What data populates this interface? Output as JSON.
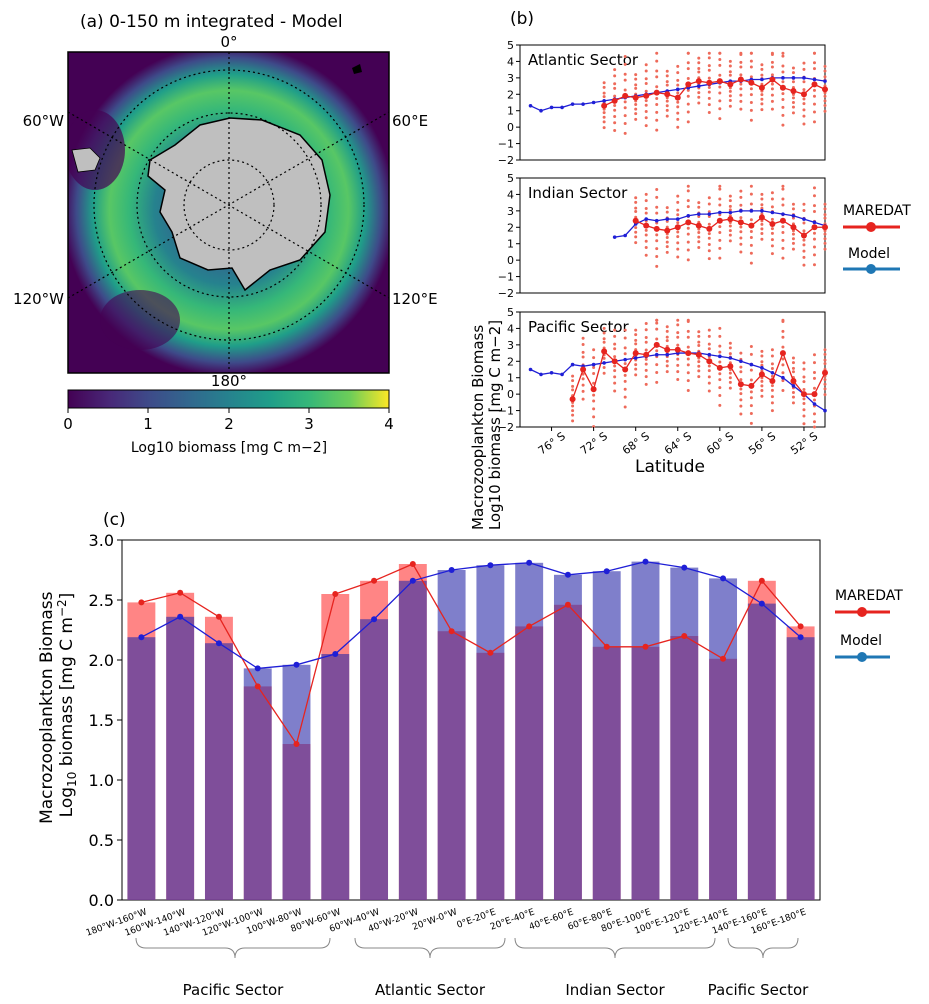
{
  "panel_a": {
    "label": "(a)",
    "title": "0-150 m integrated - Model",
    "lon_labels": {
      "top": "0°",
      "left_upper": "60°W",
      "right_upper": "60°E",
      "left_lower": "120°W",
      "right_lower": "120°E",
      "bottom": "180°"
    },
    "colorbar": {
      "label": "Log10 biomass [mg C m−2]",
      "ticks": [
        "0",
        "1",
        "2",
        "3",
        "4"
      ],
      "range": [
        0,
        4
      ],
      "colormap": "viridis"
    },
    "colors": {
      "ocean_low": "#440154",
      "land": "#bfbfbf"
    }
  },
  "panel_b": {
    "label": "(b)",
    "ylabel_line1": "Macrozooplankton Biomass",
    "ylabel_line2": "Log10 biomass [mg C m−2]",
    "xlabel": "Latitude",
    "x_ticks": [
      "76° S",
      "72° S",
      "68° S",
      "64° S",
      "60° S",
      "56° S",
      "52° S"
    ],
    "y_ticks": [
      "−2",
      "−1",
      "0",
      "1",
      "2",
      "3",
      "4",
      "5"
    ],
    "legend": {
      "maredat": "MAREDAT",
      "model": "Model"
    }
  },
  "panel_c": {
    "label": "(c)",
    "legend": {
      "maredat": "MAREDAT",
      "model": "Model"
    },
    "brace_groups": [
      "Pacific Sector",
      "Atlantic Sector",
      "Indian Sector",
      "Pacific Sector"
    ]
  },
  "chart_data": [
    {
      "type": "line",
      "title": "Atlantic Sector",
      "xlabel": "Latitude",
      "ylabel": "Log10 biomass [mg C m−2]",
      "xlim": [
        -79,
        -50
      ],
      "ylim": [
        -2,
        5
      ],
      "series": [
        {
          "name": "MAREDAT",
          "color": "#e6241f",
          "x": [
            -71,
            -70,
            -69,
            -68,
            -67,
            -66,
            -65,
            -64,
            -63,
            -62,
            -61,
            -60,
            -59,
            -58,
            -57,
            -56,
            -55,
            -54,
            -53,
            -52,
            -51,
            -50
          ],
          "y": [
            1.3,
            1.6,
            1.9,
            1.8,
            1.9,
            2.1,
            2.0,
            1.8,
            2.6,
            2.8,
            2.7,
            2.8,
            2.6,
            2.9,
            2.7,
            2.4,
            2.9,
            2.4,
            2.2,
            2.0,
            2.6,
            2.3
          ]
        },
        {
          "name": "Model",
          "color": "#1f1fd6",
          "x": [
            -78,
            -77,
            -76,
            -75,
            -74,
            -73,
            -72,
            -71,
            -70,
            -69,
            -68,
            -67,
            -66,
            -65,
            -64,
            -63,
            -62,
            -61,
            -60,
            -59,
            -58,
            -57,
            -56,
            -55,
            -54,
            -53,
            -52,
            -51,
            -50
          ],
          "y": [
            1.3,
            1.0,
            1.2,
            1.2,
            1.4,
            1.4,
            1.5,
            1.6,
            1.7,
            1.8,
            1.9,
            2.0,
            2.1,
            2.2,
            2.3,
            2.4,
            2.5,
            2.6,
            2.7,
            2.8,
            2.8,
            2.9,
            2.9,
            3.0,
            3.0,
            3.0,
            3.0,
            2.9,
            2.8
          ]
        }
      ]
    },
    {
      "type": "line",
      "title": "Indian Sector",
      "xlabel": "Latitude",
      "ylabel": "Log10 biomass [mg C m−2]",
      "xlim": [
        -79,
        -50
      ],
      "ylim": [
        -2,
        5
      ],
      "series": [
        {
          "name": "MAREDAT",
          "color": "#e6241f",
          "x": [
            -68,
            -67,
            -66,
            -65,
            -64,
            -63,
            -62,
            -61,
            -60,
            -59,
            -58,
            -57,
            -56,
            -55,
            -54,
            -53,
            -52,
            -51,
            -50
          ],
          "y": [
            2.4,
            2.1,
            1.9,
            1.8,
            2.0,
            2.3,
            2.1,
            1.9,
            2.4,
            2.5,
            2.3,
            2.1,
            2.6,
            2.2,
            2.4,
            2.0,
            1.5,
            2.0,
            2.0
          ]
        },
        {
          "name": "Model",
          "color": "#1f1fd6",
          "x": [
            -70,
            -69,
            -68,
            -67,
            -66,
            -65,
            -64,
            -63,
            -62,
            -61,
            -60,
            -59,
            -58,
            -57,
            -56,
            -55,
            -54,
            -53,
            -52,
            -51,
            -50
          ],
          "y": [
            1.4,
            1.5,
            2.2,
            2.5,
            2.4,
            2.5,
            2.5,
            2.7,
            2.8,
            2.8,
            2.9,
            2.9,
            3.0,
            3.0,
            3.0,
            2.9,
            2.8,
            2.7,
            2.5,
            2.3,
            2.1
          ]
        }
      ]
    },
    {
      "type": "line",
      "title": "Pacific Sector",
      "xlabel": "Latitude",
      "ylabel": "Log10 biomass [mg C m−2]",
      "xlim": [
        -79,
        -50
      ],
      "ylim": [
        -2,
        5
      ],
      "series": [
        {
          "name": "MAREDAT",
          "color": "#e6241f",
          "x": [
            -74,
            -73,
            -72,
            -71,
            -70,
            -69,
            -68,
            -67,
            -66,
            -65,
            -64,
            -63,
            -62,
            -61,
            -60,
            -59,
            -58,
            -57,
            -56,
            -55,
            -54,
            -53,
            -52,
            -51,
            -50
          ],
          "y": [
            -0.3,
            1.5,
            0.3,
            2.6,
            2.0,
            1.5,
            2.5,
            2.4,
            3.0,
            2.7,
            2.7,
            2.5,
            2.4,
            2.0,
            1.6,
            1.7,
            0.6,
            0.5,
            1.2,
            0.8,
            2.5,
            0.8,
            0.0,
            0.0,
            1.3
          ]
        },
        {
          "name": "Model",
          "color": "#1f1fd6",
          "x": [
            -78,
            -77,
            -76,
            -75,
            -74,
            -73,
            -72,
            -71,
            -70,
            -69,
            -68,
            -67,
            -66,
            -65,
            -64,
            -63,
            -62,
            -61,
            -60,
            -59,
            -58,
            -57,
            -56,
            -55,
            -54,
            -53,
            -52,
            -51,
            -50
          ],
          "y": [
            1.5,
            1.2,
            1.3,
            1.2,
            1.8,
            1.7,
            1.8,
            1.9,
            2.0,
            2.1,
            2.2,
            2.3,
            2.4,
            2.4,
            2.5,
            2.5,
            2.5,
            2.4,
            2.3,
            2.2,
            2.0,
            1.8,
            1.6,
            1.3,
            1.0,
            0.5,
            0.0,
            -0.6,
            -1.0
          ]
        }
      ]
    },
    {
      "type": "bar",
      "ylabel": "Macrozooplankton Biomass Log10 biomass [mg C m−2]",
      "ylim": [
        0,
        3.0
      ],
      "y_ticks": [
        "0.0",
        "0.5",
        "1.0",
        "1.5",
        "2.0",
        "2.5",
        "3.0"
      ],
      "categories": [
        "180°W-160°W",
        "160°W-140°W",
        "140°W-120°W",
        "120°W-100°W",
        "100°W-80°W",
        "80°W-60°W",
        "60°W-40°W",
        "40°W-20°W",
        "20°W-0°W",
        "0°E-20°E",
        "20°E-40°E",
        "40°E-60°E",
        "60°E-80°E",
        "80°E-100°E",
        "100°E-120°E",
        "120°E-140°E",
        "140°E-160°E",
        "160°E-180°E"
      ],
      "series": [
        {
          "name": "MAREDAT",
          "color": "#ff6666",
          "values": [
            2.48,
            2.56,
            2.36,
            1.78,
            1.3,
            2.55,
            2.66,
            2.8,
            2.24,
            2.06,
            2.28,
            2.46,
            2.11,
            2.11,
            2.2,
            2.01,
            2.66,
            2.28
          ]
        },
        {
          "name": "Model",
          "color": "#6b6bc2",
          "values": [
            2.19,
            2.36,
            2.14,
            1.93,
            1.96,
            2.05,
            2.34,
            2.66,
            2.75,
            2.79,
            2.81,
            2.71,
            2.74,
            2.82,
            2.77,
            2.68,
            2.47,
            2.19
          ]
        }
      ]
    }
  ]
}
